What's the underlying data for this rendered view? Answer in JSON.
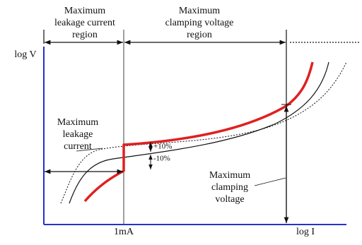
{
  "regions": [
    {
      "lines": [
        "Maximum",
        "leakage current",
        "region"
      ]
    },
    {
      "lines": [
        "Maximum",
        "clamping voltage",
        "region"
      ]
    }
  ],
  "axes": {
    "y_label": "log V",
    "x_label": "log I",
    "x_marker": "1mA"
  },
  "annotations": {
    "leakage": [
      "Maximum",
      "leakage",
      "current"
    ],
    "clamping": [
      "Maximum",
      "clamping",
      "voltage"
    ],
    "tolerance_plus": "+10%",
    "tolerance_minus": "-10%"
  }
}
